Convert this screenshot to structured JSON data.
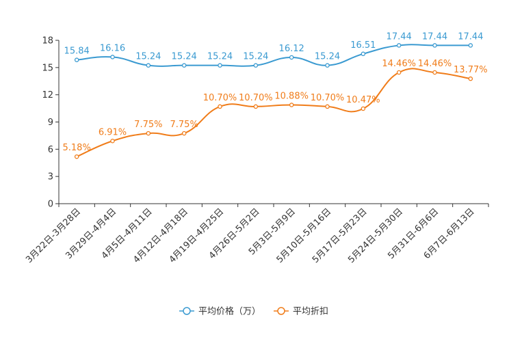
{
  "chart_data": {
    "type": "line",
    "title": "",
    "xlabel": "",
    "ylabel": "",
    "ylim": [
      0,
      18
    ],
    "yticks": [
      0,
      3,
      6,
      9,
      12,
      15,
      18
    ],
    "grid": false,
    "legend_position": "bottom-center",
    "categories": [
      "3月22日-3月28日",
      "3月29日-4月4日",
      "4月5日-4月11日",
      "4月12日-4月18日",
      "4月19日-4月25日",
      "4月26日-5月2日",
      "5月3日-5月9日",
      "5月10日-5月16日",
      "5月17日-5月23日",
      "5月24日-5月30日",
      "5月31日-6月6日",
      "6月7日-6月13日"
    ],
    "series": [
      {
        "name": "平均价格（万）",
        "color": "#3a9ad1",
        "values": [
          15.84,
          16.16,
          15.24,
          15.24,
          15.24,
          15.24,
          16.12,
          15.24,
          16.51,
          17.44,
          17.44,
          17.44
        ],
        "labels": [
          "15.84",
          "16.16",
          "15.24",
          "15.24",
          "15.24",
          "15.24",
          "16.12",
          "15.24",
          "16.51",
          "17.44",
          "17.44",
          "17.44"
        ]
      },
      {
        "name": "平均折扣",
        "color": "#f07c19",
        "values": [
          5.18,
          6.91,
          7.75,
          7.75,
          10.7,
          10.7,
          10.88,
          10.7,
          10.47,
          14.46,
          14.46,
          13.77
        ],
        "labels": [
          "5.18%",
          "6.91%",
          "7.75%",
          "7.75%",
          "10.70%",
          "10.70%",
          "10.88%",
          "10.70%",
          "10.47%",
          "14.46%",
          "14.46%",
          "13.77%"
        ]
      }
    ]
  }
}
